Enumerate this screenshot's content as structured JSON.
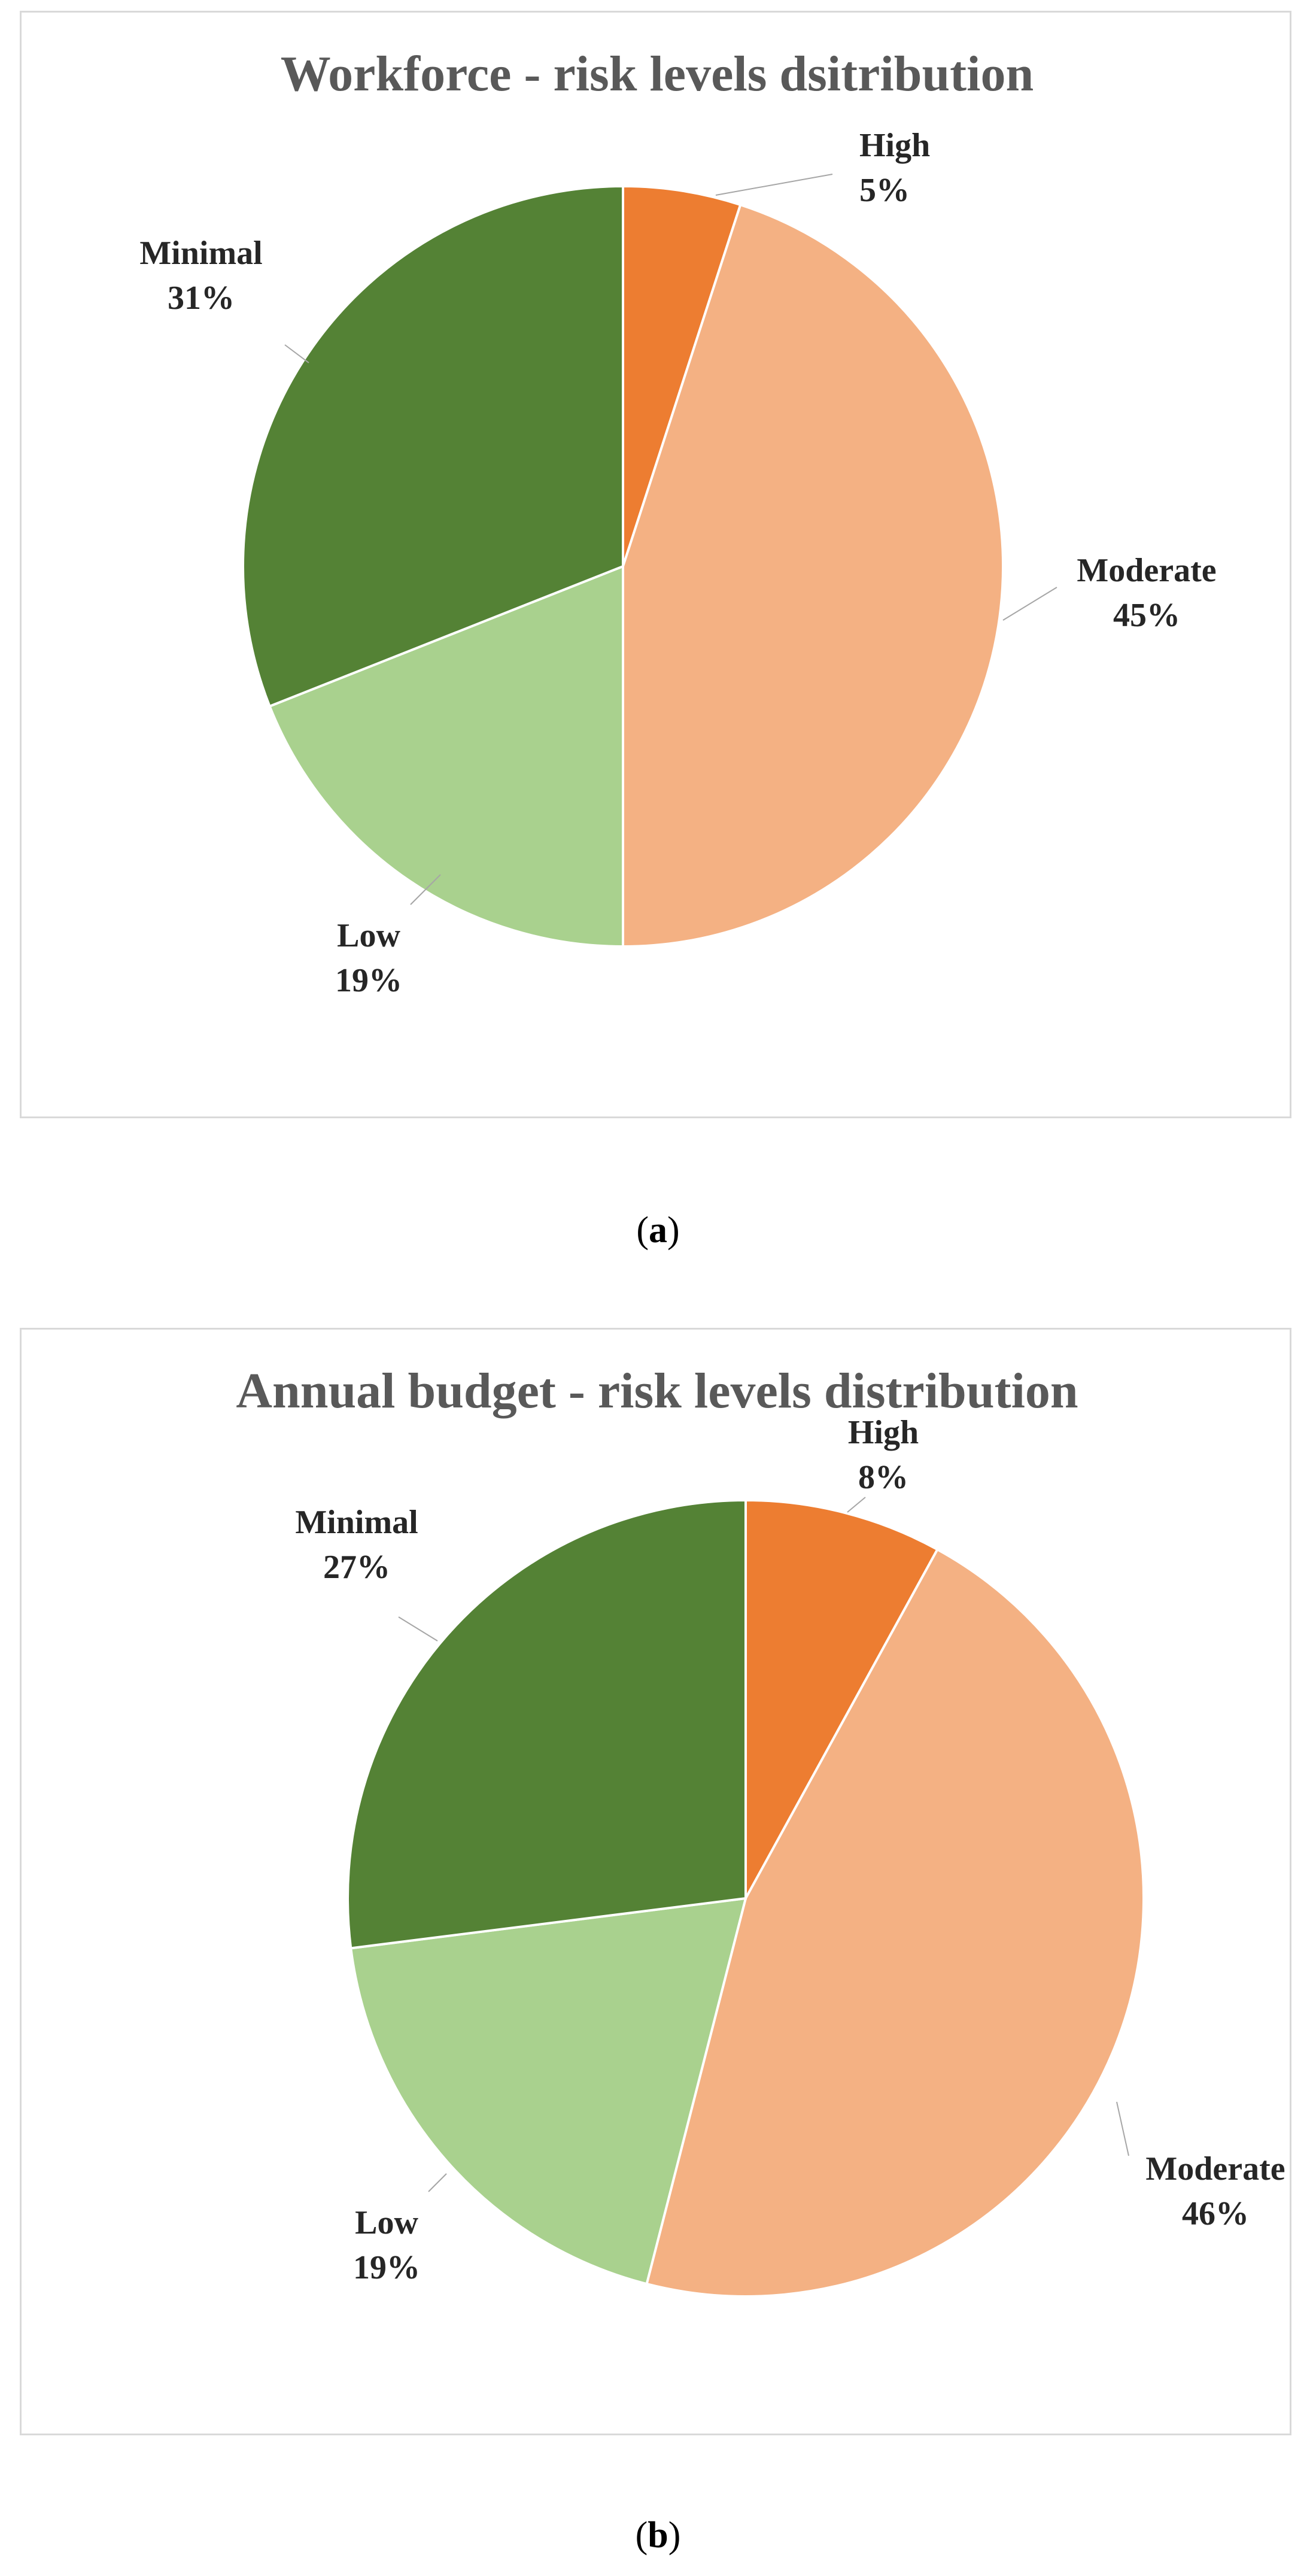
{
  "chart_data": [
    {
      "type": "pie",
      "title": "Workforce - risk levels dsitribution",
      "caption_letter": "a",
      "start_angle_deg": 0,
      "direction": "clockwise",
      "slices": [
        {
          "label": "High",
          "value": 5,
          "percent_label": "5%",
          "color": "#ed7d31"
        },
        {
          "label": "Moderate",
          "value": 45,
          "percent_label": "45%",
          "color": "#f4b183"
        },
        {
          "label": "Low",
          "value": 19,
          "percent_label": "19%",
          "color": "#a9d18e"
        },
        {
          "label": "Minimal",
          "value": 31,
          "percent_label": "31%",
          "color": "#548235"
        }
      ]
    },
    {
      "type": "pie",
      "title": "Annual budget - risk levels distribution",
      "caption_letter": "b",
      "start_angle_deg": 0,
      "direction": "clockwise",
      "slices": [
        {
          "label": "High",
          "value": 8,
          "percent_label": "8%",
          "color": "#ed7d31"
        },
        {
          "label": "Moderate",
          "value": 46,
          "percent_label": "46%",
          "color": "#f4b183"
        },
        {
          "label": "Low",
          "value": 19,
          "percent_label": "19%",
          "color": "#a9d18e"
        },
        {
          "label": "Minimal",
          "value": 27,
          "percent_label": "27%",
          "color": "#548235"
        }
      ]
    }
  ]
}
